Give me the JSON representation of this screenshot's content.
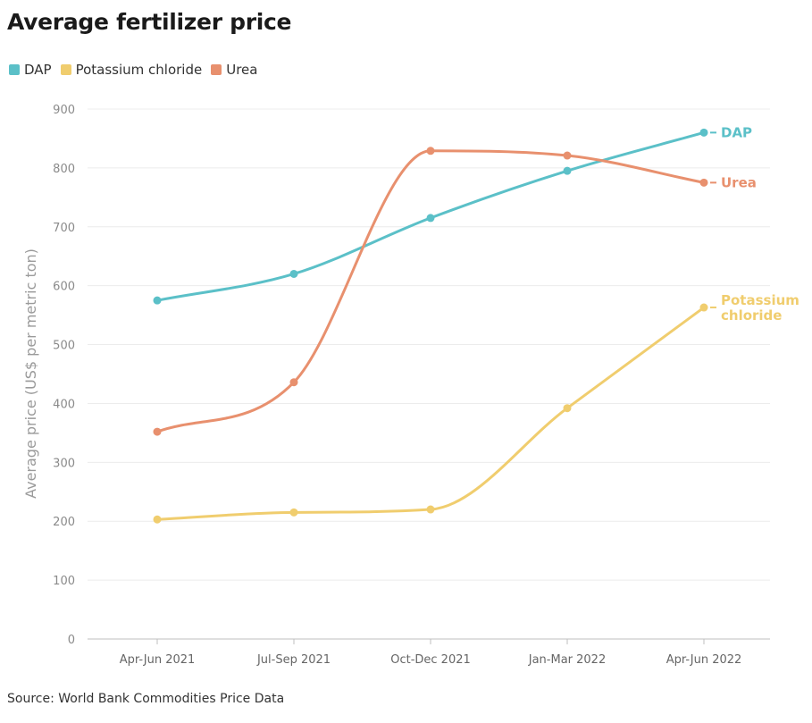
{
  "title": "Average fertilizer price",
  "legend": [
    {
      "label": "DAP",
      "color": "#5bc0c8"
    },
    {
      "label": "Potassium chloride",
      "color": "#f0cd6e"
    },
    {
      "label": "Urea",
      "color": "#e8906e"
    }
  ],
  "source": "Source: World Bank Commodities Price Data",
  "chart_data": {
    "type": "line",
    "title": "Average fertilizer price",
    "ylabel": "Average price (US$ per metric ton)",
    "xlabel": "",
    "ylim": [
      0,
      900
    ],
    "yticks": [
      0,
      100,
      200,
      300,
      400,
      500,
      600,
      700,
      800,
      900
    ],
    "grid": true,
    "legend_position": "top-left",
    "categories": [
      "Apr-Jun 2021",
      "Jul-Sep 2021",
      "Oct-Dec 2021",
      "Jan-Mar 2022",
      "Apr-Jun 2022"
    ],
    "series": [
      {
        "name": "DAP",
        "end_label": "DAP",
        "color": "#5bc0c8",
        "values": [
          575,
          620,
          715,
          795,
          860
        ]
      },
      {
        "name": "Potassium chloride",
        "end_label": "Potassium chloride",
        "end_label_lines": [
          "Potassium",
          "chloride"
        ],
        "color": "#f0cd6e",
        "values": [
          203,
          215,
          220,
          392,
          563
        ]
      },
      {
        "name": "Urea",
        "end_label": "Urea",
        "color": "#e8906e",
        "values": [
          352,
          436,
          829,
          821,
          775
        ]
      }
    ]
  }
}
